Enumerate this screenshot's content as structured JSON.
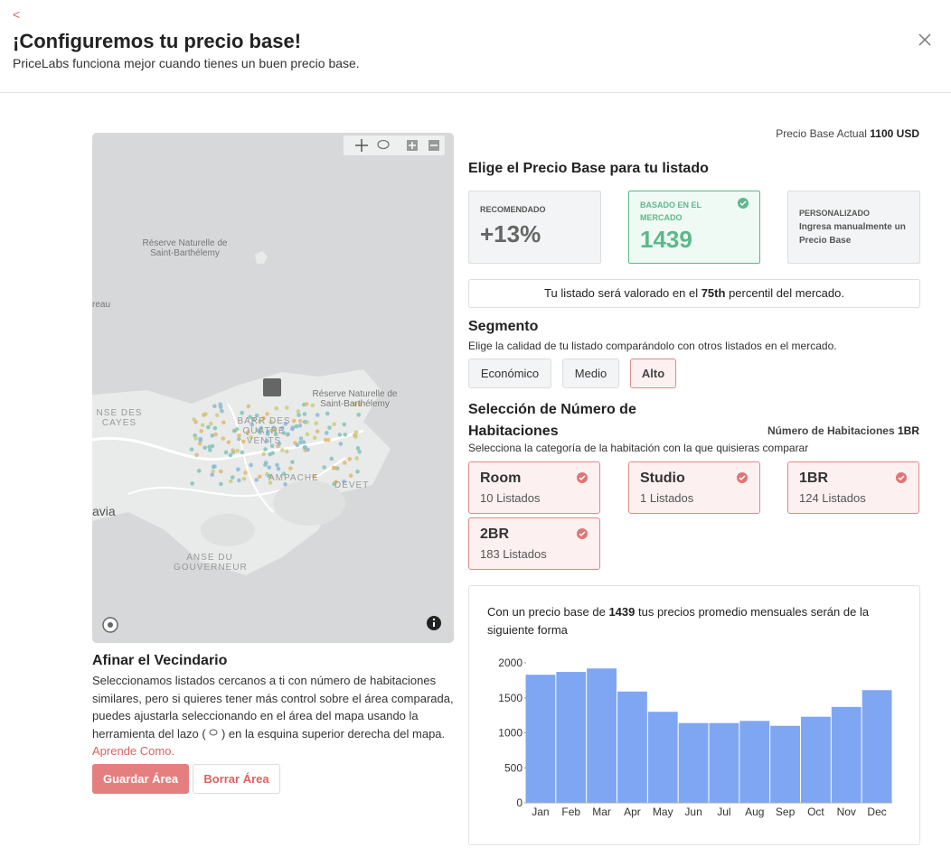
{
  "back": "<",
  "header": {
    "title": "¡Configuremos tu precio base!",
    "subtitle": "PriceLabs funciona mejor cuando tienes un buen precio base."
  },
  "map": {
    "labels": [
      "Réserve Naturelle de Saint-Barthélemy",
      "reau",
      "NSE DES CAYES",
      "avia",
      "BARR DES QUATRE VENTS",
      "AMPACHE",
      "Réserve Naturelle de Saint-Barthélemy",
      "DEVET",
      "ANSE DU GOUVERNEUR"
    ]
  },
  "neighborhood": {
    "title": "Afinar el Vecindario",
    "text_before": "Seleccionamos listados cercanos a ti con número de habitaciones similares, pero si quieres tener más control sobre el área comparada, puedes ajustarla seleccionando en el área del mapa usando la herramienta del lazo (",
    "text_after": ") en la esquina superior derecha del mapa.",
    "link": "Aprende Como.",
    "save": "Guardar Área",
    "clear": "Borrar Área"
  },
  "current_price": {
    "label": "Precio Base Actual",
    "value": "1100 USD"
  },
  "choose": {
    "title": "Elige el Precio Base para tu listado",
    "recommended": {
      "label": "RECOMENDADO",
      "value": "+13%"
    },
    "market": {
      "label": "BASADO EN EL MERCADO",
      "value": 1439
    },
    "custom": {
      "label": "PERSONALIZADO",
      "description": "Ingresa manualmente un Precio Base"
    }
  },
  "percentile": {
    "before": "Tu listado será valorado en el",
    "bold": "75th",
    "after": "percentil del mercado."
  },
  "segment": {
    "title": "Segmento",
    "description": "Elige la calidad de tu listado comparándolo con otros listados en el mercado.",
    "options": [
      "Económico",
      "Medio",
      "Alto"
    ]
  },
  "rooms": {
    "title": "Selección de Número de Habitaciones",
    "count_label": "Número de Habitaciones",
    "count_value": "1BR",
    "description": "Selecciona la categoría de la habitación con la que quisieras comparar",
    "options": [
      {
        "name": "Room",
        "listings": "10 Listados"
      },
      {
        "name": "Studio",
        "listings": "1 Listados"
      },
      {
        "name": "1BR",
        "listings": "124 Listados"
      },
      {
        "name": "2BR",
        "listings": "183 Listados"
      }
    ]
  },
  "projection": {
    "before": "Con un precio base de",
    "bold": 1439,
    "after": "tus precios promedio mensuales serán de la siguiente forma"
  },
  "chart_data": {
    "type": "bar",
    "categories": [
      "Jan",
      "Feb",
      "Mar",
      "Apr",
      "May",
      "Jun",
      "Jul",
      "Aug",
      "Sep",
      "Oct",
      "Nov",
      "Dec"
    ],
    "values": [
      1830,
      1870,
      1920,
      1590,
      1300,
      1140,
      1140,
      1170,
      1100,
      1230,
      1370,
      1610
    ],
    "color": "#7fa6f2",
    "ylim": [
      0,
      2000
    ],
    "yticks": [
      0,
      500,
      1000,
      1500,
      2000
    ]
  }
}
